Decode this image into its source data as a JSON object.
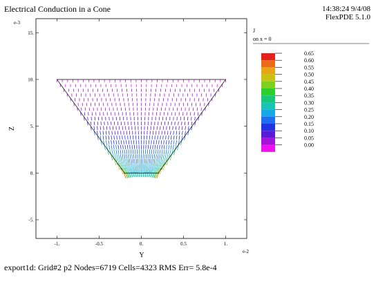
{
  "header": {
    "title": "Electrical Conduction in a Cone",
    "timestamp": "14:38:24 9/4/08",
    "software": "FlexPDE 5.1.0"
  },
  "footer": {
    "text": "export1d:  Grid#2  p2  Nodes=6719 Cells=4323 RMS Err= 5.8e-4"
  },
  "legend": {
    "title": "J",
    "subtitle": "on x = 0",
    "entries": [
      {
        "label": "0.65",
        "color": "#e8201b"
      },
      {
        "label": "0.60",
        "color": "#ef6a18"
      },
      {
        "label": "0.55",
        "color": "#e9a517"
      },
      {
        "label": "0.50",
        "color": "#c9c212"
      },
      {
        "label": "0.45",
        "color": "#7fcf1e"
      },
      {
        "label": "0.40",
        "color": "#2ecf2a"
      },
      {
        "label": "0.35",
        "color": "#19c777"
      },
      {
        "label": "0.30",
        "color": "#16c5b4"
      },
      {
        "label": "0.25",
        "color": "#17a8e6"
      },
      {
        "label": "0.20",
        "color": "#1d6ff0"
      },
      {
        "label": "0.15",
        "color": "#2233e6"
      },
      {
        "label": "0.10",
        "color": "#5a1ad9"
      },
      {
        "label": "0.05",
        "color": "#a313dc"
      },
      {
        "label": "0.00",
        "color": "#ee10ee"
      }
    ]
  },
  "chart_data": {
    "type": "vector-field",
    "title": "Electrical Conduction in a Cone",
    "xlabel": "Y",
    "ylabel": "Z",
    "x_exponent": "e-2",
    "y_exponent": "e-3",
    "xlim": [
      -1.25,
      1.25
    ],
    "ylim": [
      -7,
      16.5
    ],
    "x_ticks": [
      -1.0,
      -0.5,
      0.0,
      0.5,
      1.0
    ],
    "x_tick_labels": [
      "-1.",
      "-0.5",
      "0.",
      "0.5",
      "1."
    ],
    "y_ticks": [
      -5,
      0,
      5,
      10,
      15
    ],
    "y_tick_labels": [
      "-5.",
      "0.",
      "5.",
      "10.",
      "15."
    ],
    "domain_outline": [
      [
        -1.0,
        10.0
      ],
      [
        1.0,
        10.0
      ],
      [
        0.2,
        0.0
      ],
      [
        -0.2,
        0.0
      ]
    ],
    "quantity": "J on x = 0",
    "magnitude_range": [
      0.0,
      0.65
    ],
    "vector_rows_z": [
      10.0,
      9.5,
      9.0,
      8.5,
      8.0,
      7.5,
      7.0,
      6.5,
      6.0,
      5.5,
      5.0,
      4.5,
      4.0,
      3.5,
      3.0,
      2.5,
      2.0,
      1.5,
      1.0,
      0.5,
      0.1
    ],
    "vector_columns_per_row": 33,
    "vector_magnitude_top": 0.02,
    "vector_magnitude_bottom": 0.28,
    "vector_magnitude_edge_bottom": 0.62
  }
}
